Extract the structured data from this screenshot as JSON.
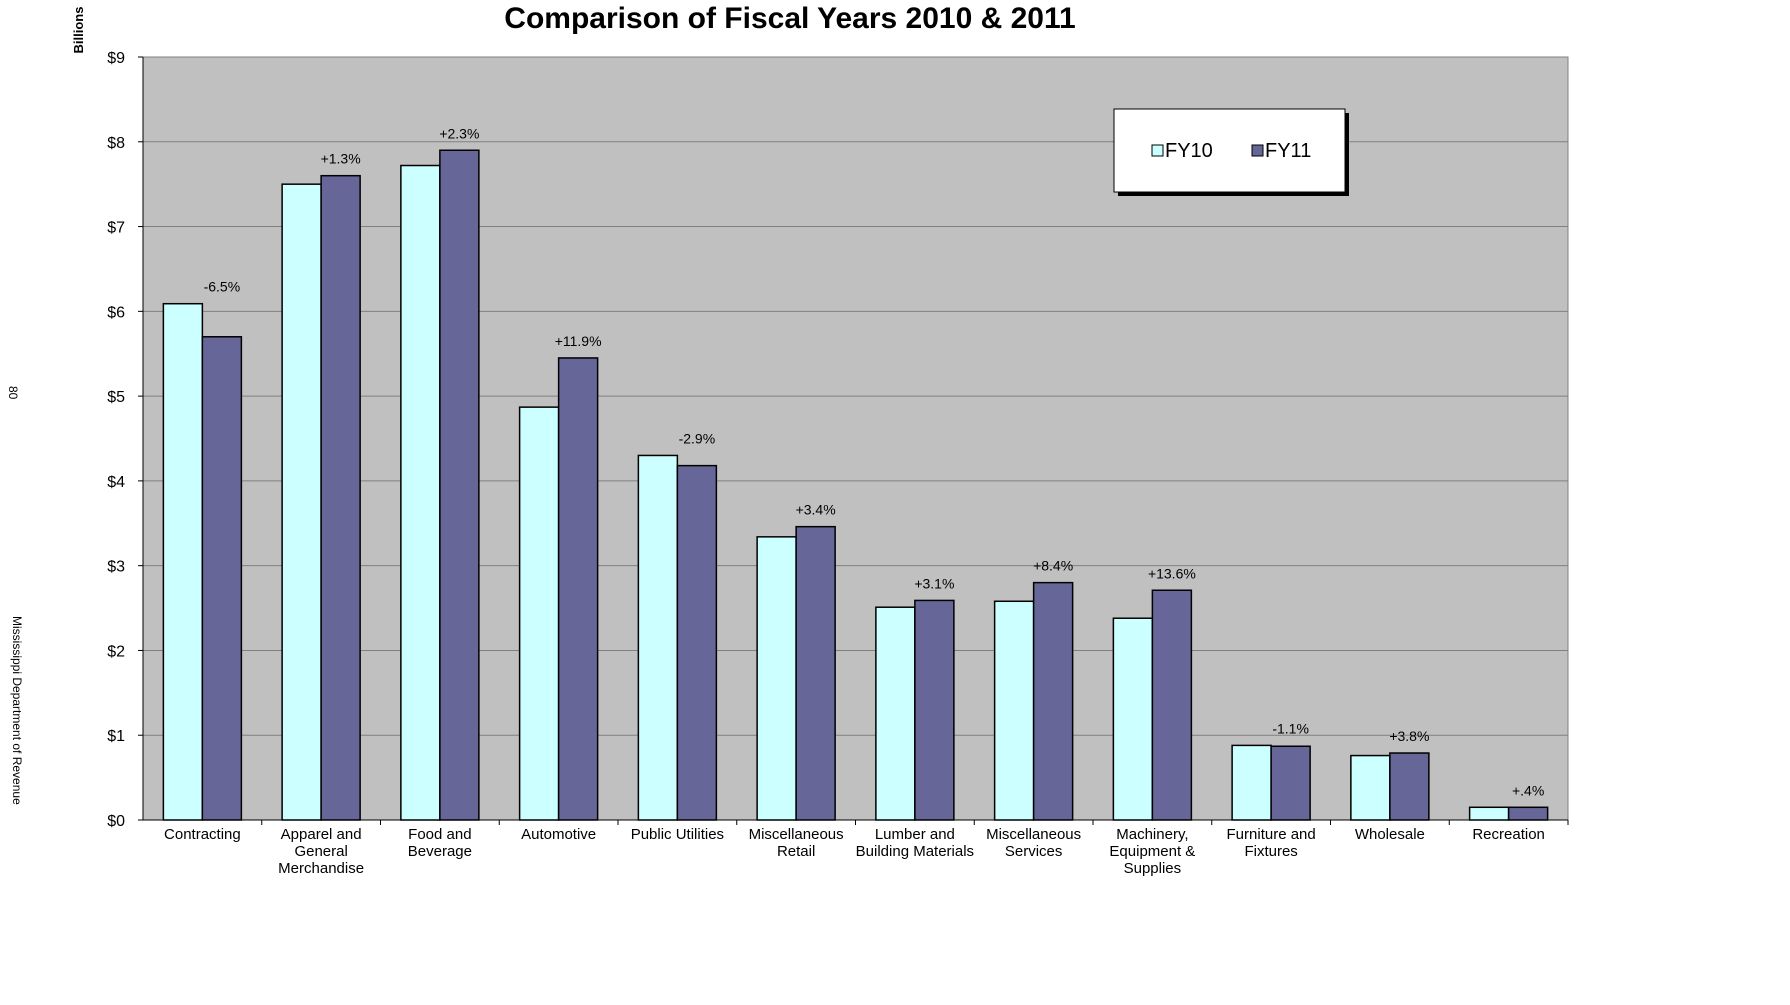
{
  "side_text": {
    "page_number": "80",
    "department": "Mississippi Department of Revenue"
  },
  "colors": {
    "plot_background": "#c0c0c0",
    "fy10": "#ccffff",
    "fy11": "#666699",
    "gridline": "#808080"
  },
  "chart_data": {
    "type": "bar",
    "title": "Comparison of Fiscal Years 2010 & 2011",
    "ylabel": "Billions",
    "xlabel": "",
    "ylim": [
      0,
      9
    ],
    "y_ticks": [
      "$0",
      "$1",
      "$2",
      "$3",
      "$4",
      "$5",
      "$6",
      "$7",
      "$8",
      "$9"
    ],
    "grid": true,
    "legend_position": "top-right",
    "categories": [
      [
        "Contracting"
      ],
      [
        "Apparel and",
        "General",
        "Merchandise"
      ],
      [
        "Food and",
        "Beverage"
      ],
      [
        "Automotive"
      ],
      [
        "Public Utilities"
      ],
      [
        "Miscellaneous",
        "Retail"
      ],
      [
        "Lumber and",
        "Building Materials"
      ],
      [
        "Miscellaneous",
        "Services"
      ],
      [
        "Machinery,",
        "Equipment &",
        "Supplies"
      ],
      [
        "Furniture and",
        "Fixtures"
      ],
      [
        "Wholesale"
      ],
      [
        "Recreation"
      ]
    ],
    "series": [
      {
        "name": "FY10",
        "values": [
          6.09,
          7.5,
          7.72,
          4.87,
          4.3,
          3.34,
          2.51,
          2.58,
          2.38,
          0.88,
          0.76,
          0.15
        ]
      },
      {
        "name": "FY11",
        "values": [
          5.7,
          7.6,
          7.9,
          5.45,
          4.18,
          3.46,
          2.59,
          2.8,
          2.71,
          0.87,
          0.79,
          0.15
        ]
      }
    ],
    "annotations": [
      "-6.5%",
      "+1.3%",
      "+2.3%",
      "+11.9%",
      "-2.9%",
      "+3.4%",
      "+3.1%",
      "+8.4%",
      "+13.6%",
      "-1.1%",
      "+3.8%",
      "+.4%"
    ]
  }
}
